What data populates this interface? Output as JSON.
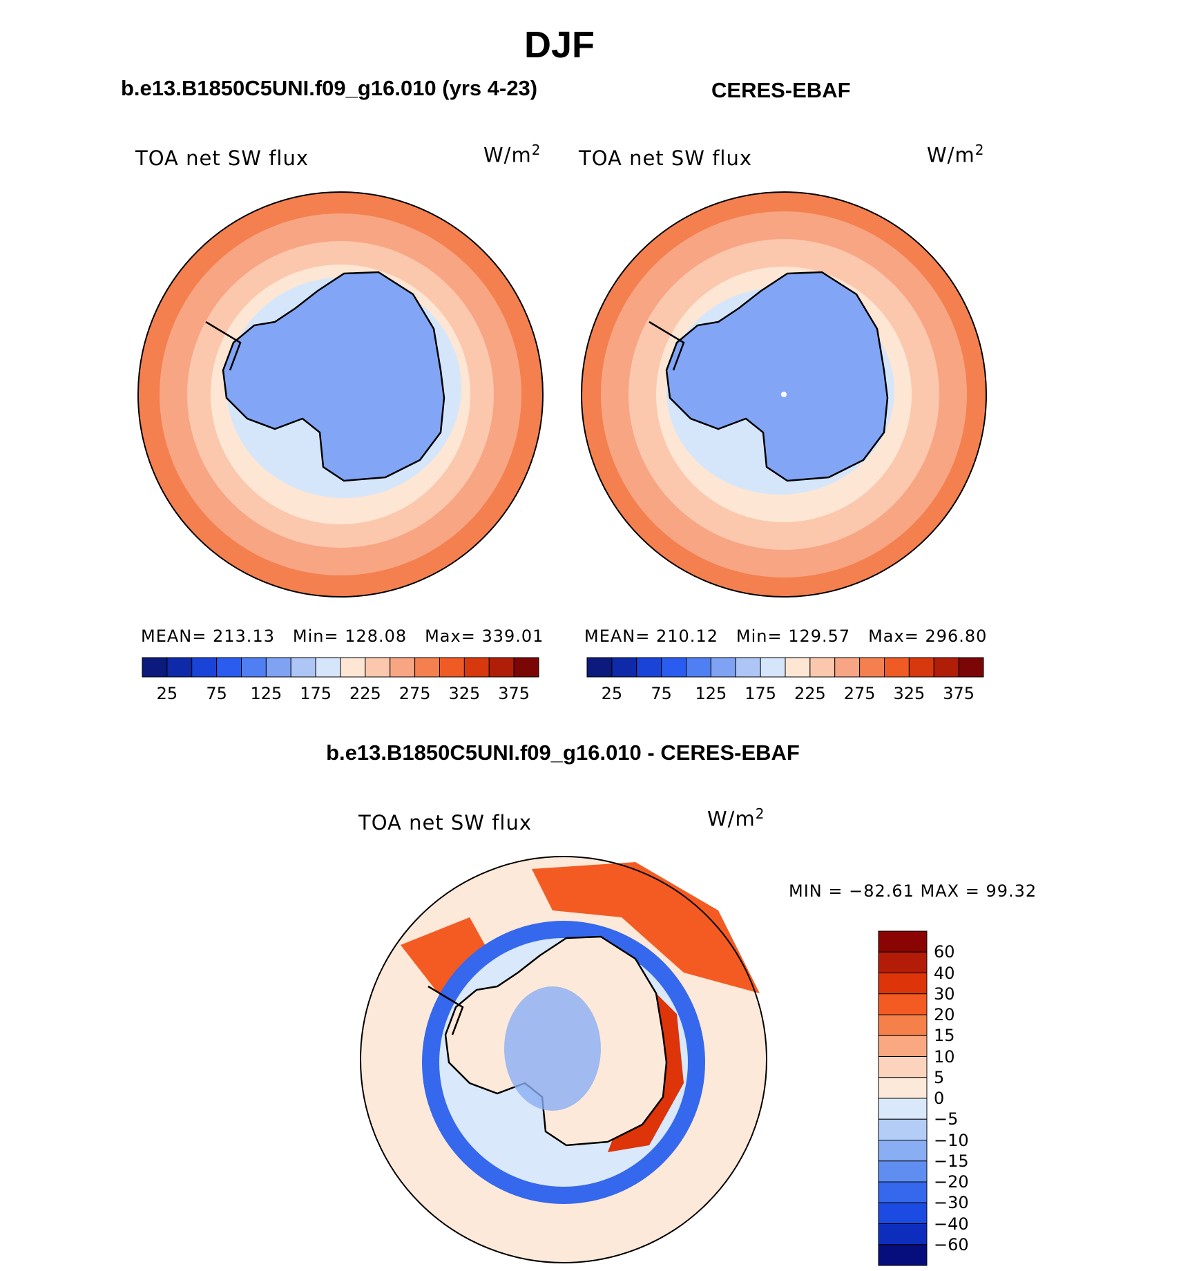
{
  "title": "DJF",
  "panels": [
    {
      "id": "model",
      "subtitle": "b.e13.B1850C5UNI.f09_g16.010 (yrs 4-23)",
      "variable": "TOA net SW flux",
      "units_base": "W/m",
      "units_exp": "2",
      "stats": {
        "mean_label": "MEAN=",
        "mean": "213.13",
        "min_label": "Min=",
        "min": "128.08",
        "max_label": "Max=",
        "max": "339.01"
      }
    },
    {
      "id": "obs",
      "subtitle": "CERES-EBAF",
      "variable": "TOA net SW flux",
      "units_base": "W/m",
      "units_exp": "2",
      "stats": {
        "mean_label": "MEAN=",
        "mean": "210.12",
        "min_label": "Min=",
        "min": "129.57",
        "max_label": "Max=",
        "max": "296.80"
      }
    }
  ],
  "abs_colorbar": {
    "colors": [
      "#0b1a7c",
      "#0f2aa8",
      "#1a44d8",
      "#2a5cf0",
      "#4f7ff2",
      "#7fa2f3",
      "#aec6f6",
      "#d6e6fa",
      "#fde6d4",
      "#fbc8ae",
      "#f8a584",
      "#f4804f",
      "#f05a24",
      "#d8380e",
      "#b01e08",
      "#7a0705"
    ],
    "tick_labels": [
      "25",
      "75",
      "125",
      "175",
      "225",
      "275",
      "325",
      "375"
    ]
  },
  "diff": {
    "subtitle": "b.e13.B1850C5UNI.f09_g16.010 - CERES-EBAF",
    "variable": "TOA net SW flux",
    "units_base": "W/m",
    "units_exp": "2",
    "minmax_text": "MIN = −82.61 MAX =  99.32",
    "colorbar": {
      "colors": [
        "#8a0404",
        "#b31d07",
        "#dd3409",
        "#f45b22",
        "#f58049",
        "#f9a882",
        "#fcd3bd",
        "#fde9d9",
        "#d9e8fa",
        "#b3cdf7",
        "#89aef4",
        "#5f8ef0",
        "#3568ec",
        "#1b4be2",
        "#0d2ebd",
        "#060d7c"
      ],
      "tick_labels": [
        "60",
        "40",
        "30",
        "20",
        "15",
        "10",
        "5",
        "0",
        "−5",
        "−10",
        "−15",
        "−20",
        "−30",
        "−40",
        "−60"
      ]
    }
  }
}
